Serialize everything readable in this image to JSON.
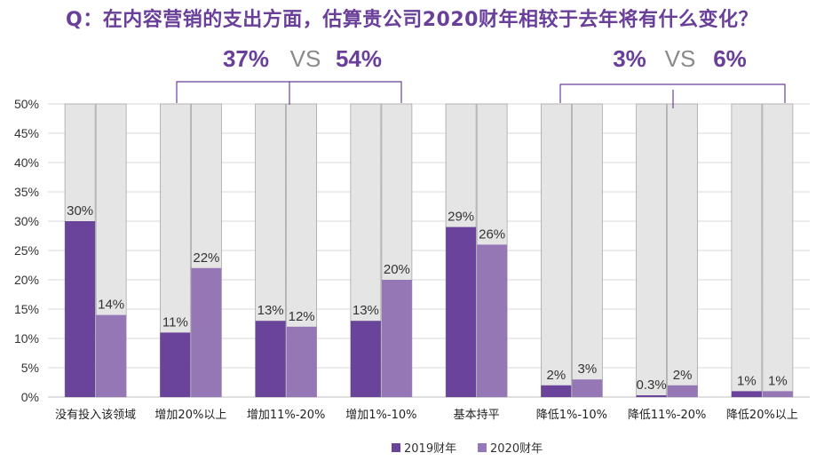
{
  "title": "Q：在内容营销的支出方面，估算贵公司2020财年相较于去年将有什么变化？",
  "comparisons": [
    {
      "left": "37%",
      "vs": "VS",
      "right": "54%"
    },
    {
      "left": "3%",
      "vs": "VS",
      "right": "6%"
    }
  ],
  "legend": [
    {
      "label": "2019财年",
      "color": "#69449a"
    },
    {
      "label": "2020财年",
      "color": "#9677b6"
    }
  ],
  "chart_data": {
    "type": "bar",
    "categories": [
      "没有投入该领域",
      "增加20%以上",
      "增加11%-20%",
      "增加1%-10%",
      "基本持平",
      "降低1%-10%",
      "降低11%-20%",
      "降低20%以上"
    ],
    "series": [
      {
        "name": "2019财年",
        "values": [
          30,
          11,
          13,
          13,
          29,
          2,
          0.3,
          1
        ],
        "labels": [
          "30%",
          "11%",
          "13%",
          "13%",
          "29%",
          "2%",
          "0.3%",
          "1%"
        ],
        "color": "#69449a"
      },
      {
        "name": "2020财年",
        "values": [
          14,
          22,
          12,
          20,
          26,
          3,
          2,
          1
        ],
        "labels": [
          "14%",
          "22%",
          "12%",
          "20%",
          "26%",
          "3%",
          "2%",
          "1%"
        ],
        "color": "#9677b6"
      }
    ],
    "ylim": [
      0,
      50
    ],
    "yticks": [
      "0%",
      "5%",
      "10%",
      "15%",
      "20%",
      "25%",
      "30%",
      "35%",
      "40%",
      "45%",
      "50%"
    ],
    "background_bar_color": "#e5e5e5",
    "grid": true,
    "legend_position": "bottom-right"
  }
}
